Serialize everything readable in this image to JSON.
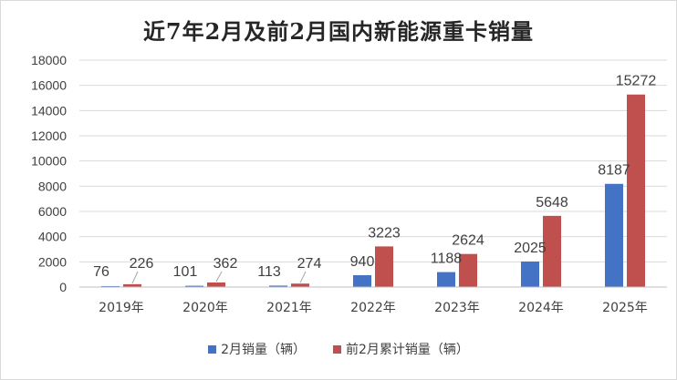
{
  "chart_data": {
    "type": "bar",
    "title": "近7年2月及前2月国内新能源重卡销量",
    "categories": [
      "2019年",
      "2020年",
      "2021年",
      "2022年",
      "2023年",
      "2024年",
      "2025年"
    ],
    "series": [
      {
        "name": "2月销量（辆）",
        "color": "#4472c4",
        "values": [
          76,
          101,
          113,
          940,
          1188,
          2025,
          8187
        ]
      },
      {
        "name": "前2月累计销量（辆）",
        "color": "#c0504d",
        "values": [
          226,
          362,
          274,
          3223,
          2624,
          5648,
          15272
        ]
      }
    ],
    "ylim": [
      0,
      18000
    ],
    "yticks": [
      0,
      2000,
      4000,
      6000,
      8000,
      10000,
      12000,
      14000,
      16000,
      18000
    ],
    "grid": true,
    "legend": "bottom",
    "xlabel": "",
    "ylabel": ""
  }
}
